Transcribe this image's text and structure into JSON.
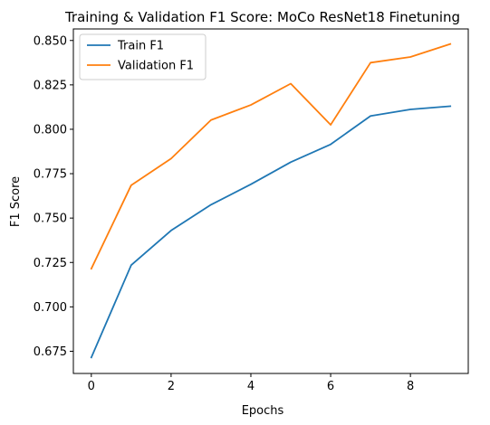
{
  "chart_data": {
    "type": "line",
    "title": "Training & Validation F1 Score: MoCo ResNet18 Finetuning",
    "xlabel": "Epochs",
    "ylabel": "F1 Score",
    "x": [
      0,
      1,
      2,
      3,
      4,
      5,
      6,
      7,
      8,
      9
    ],
    "xlim": [
      -0.45,
      9.45
    ],
    "ylim": [
      0.6625,
      0.8565
    ],
    "xticks": [
      "0",
      "2",
      "4",
      "6",
      "8"
    ],
    "xtick_values": [
      0,
      2,
      4,
      6,
      8
    ],
    "yticks": [
      "0.675",
      "0.700",
      "0.725",
      "0.750",
      "0.775",
      "0.800",
      "0.825",
      "0.850"
    ],
    "ytick_values": [
      0.675,
      0.7,
      0.725,
      0.75,
      0.775,
      0.8,
      0.825,
      0.85
    ],
    "grid": false,
    "legend_position": "top-left",
    "series": [
      {
        "name": "Train F1",
        "color": "#1f77b4",
        "values": [
          0.6715,
          0.7235,
          0.743,
          0.7575,
          0.769,
          0.7815,
          0.7915,
          0.8075,
          0.8112,
          0.813
        ]
      },
      {
        "name": "Validation F1",
        "color": "#ff7f0e",
        "values": [
          0.7215,
          0.7685,
          0.7835,
          0.8052,
          0.8137,
          0.8257,
          0.8025,
          0.8375,
          0.8407,
          0.848
        ]
      }
    ]
  }
}
